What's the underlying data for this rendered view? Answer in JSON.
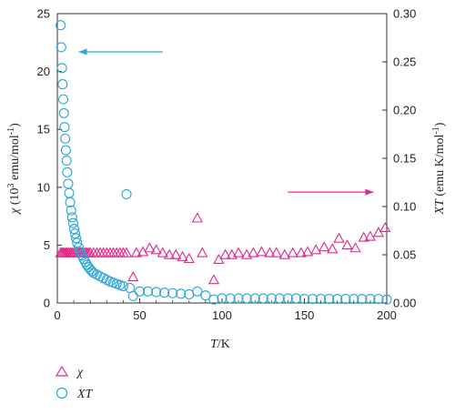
{
  "chart_data": {
    "type": "scatter",
    "x_label": {
      "base": "T",
      "unit": "/K"
    },
    "y_left_label": {
      "symbol": "χ",
      "prefix": " (10",
      "exp": "3",
      "suffix": " emu/mol",
      "unit_exp": "-1",
      "close": ")"
    },
    "y_right_label": {
      "symbol": "XT",
      "text": " (emu K/mol",
      "unit_exp": "-1",
      "close": ")"
    },
    "xlim": [
      0,
      200
    ],
    "ylim_left": [
      0,
      25
    ],
    "ylim_right": [
      0,
      0.3
    ],
    "x_ticks": [
      "0",
      "50",
      "100",
      "150",
      "200"
    ],
    "y_left_ticks": [
      "0",
      "5",
      "10",
      "15",
      "20",
      "25"
    ],
    "y_right_ticks": [
      "0.00",
      "0.05",
      "0.10",
      "0.15",
      "0.20",
      "0.25",
      "0.30"
    ],
    "colors": {
      "chi": "#e0288a",
      "chiT": "#2aa6d8",
      "arrow_left": "#2aa6d8",
      "arrow_right": "#e0288a"
    },
    "series": [
      {
        "name": "χ",
        "axis": "right",
        "marker": "triangle",
        "color": "#e0288a",
        "points": [
          [
            2,
            0.052
          ],
          [
            2.8,
            0.052
          ],
          [
            3.6,
            0.052
          ],
          [
            4.4,
            0.052
          ],
          [
            5.2,
            0.052
          ],
          [
            6,
            0.052
          ],
          [
            7,
            0.052
          ],
          [
            8,
            0.052
          ],
          [
            9,
            0.052
          ],
          [
            10,
            0.052
          ],
          [
            11,
            0.052
          ],
          [
            12,
            0.052
          ],
          [
            13,
            0.052
          ],
          [
            14,
            0.052
          ],
          [
            15,
            0.052
          ],
          [
            16,
            0.052
          ],
          [
            17,
            0.052
          ],
          [
            18,
            0.052
          ],
          [
            19,
            0.052
          ],
          [
            20,
            0.052
          ],
          [
            22,
            0.052
          ],
          [
            24,
            0.052
          ],
          [
            26,
            0.052
          ],
          [
            28,
            0.052
          ],
          [
            30,
            0.052
          ],
          [
            32,
            0.052
          ],
          [
            34,
            0.052
          ],
          [
            36,
            0.052
          ],
          [
            38,
            0.052
          ],
          [
            40,
            0.052
          ],
          [
            42,
            0.052
          ],
          [
            46,
            0.027
          ],
          [
            48,
            0.052
          ],
          [
            52,
            0.053
          ],
          [
            56,
            0.057
          ],
          [
            60,
            0.055
          ],
          [
            64,
            0.052
          ],
          [
            68,
            0.05
          ],
          [
            72,
            0.05
          ],
          [
            76,
            0.048
          ],
          [
            80,
            0.046
          ],
          [
            85,
            0.088
          ],
          [
            88,
            0.052
          ],
          [
            95,
            0.024
          ],
          [
            98,
            0.045
          ],
          [
            102,
            0.05
          ],
          [
            106,
            0.05
          ],
          [
            110,
            0.052
          ],
          [
            115,
            0.05
          ],
          [
            119,
            0.052
          ],
          [
            124,
            0.053
          ],
          [
            129,
            0.052
          ],
          [
            133,
            0.052
          ],
          [
            138,
            0.05
          ],
          [
            143,
            0.052
          ],
          [
            148,
            0.052
          ],
          [
            152,
            0.053
          ],
          [
            157,
            0.055
          ],
          [
            162,
            0.058
          ],
          [
            167,
            0.056
          ],
          [
            171,
            0.067
          ],
          [
            176,
            0.06
          ],
          [
            181,
            0.057
          ],
          [
            186,
            0.068
          ],
          [
            190,
            0.069
          ],
          [
            195,
            0.073
          ],
          [
            199,
            0.078
          ]
        ]
      },
      {
        "name": "XT",
        "axis": "left",
        "marker": "circle",
        "color": "#2aa6d8",
        "points": [
          [
            2,
            24.0
          ],
          [
            2.4,
            22.1
          ],
          [
            2.8,
            20.3
          ],
          [
            3.2,
            18.9
          ],
          [
            3.6,
            17.6
          ],
          [
            4,
            16.4
          ],
          [
            4.4,
            15.2
          ],
          [
            4.8,
            14.2
          ],
          [
            5.2,
            13.2
          ],
          [
            5.6,
            12.3
          ],
          [
            6,
            11.3
          ],
          [
            6.6,
            10.3
          ],
          [
            7.2,
            9.5
          ],
          [
            7.8,
            8.7
          ],
          [
            8.4,
            8.0
          ],
          [
            9,
            7.4
          ],
          [
            9.6,
            6.9
          ],
          [
            10.2,
            6.4
          ],
          [
            10.8,
            6.0
          ],
          [
            11.4,
            5.6
          ],
          [
            12,
            5.2
          ],
          [
            13,
            4.8
          ],
          [
            14,
            4.4
          ],
          [
            15,
            4.1
          ],
          [
            16,
            3.8
          ],
          [
            17,
            3.55
          ],
          [
            18,
            3.3
          ],
          [
            19,
            3.1
          ],
          [
            20,
            2.9
          ],
          [
            21,
            2.75
          ],
          [
            22,
            2.6
          ],
          [
            24,
            2.45
          ],
          [
            26,
            2.3
          ],
          [
            28,
            2.15
          ],
          [
            30,
            2.0
          ],
          [
            32,
            1.85
          ],
          [
            34,
            1.75
          ],
          [
            36,
            1.65
          ],
          [
            38,
            1.55
          ],
          [
            40,
            1.45
          ],
          [
            42,
            9.4
          ],
          [
            44,
            1.3
          ],
          [
            46,
            0.6
          ],
          [
            50,
            1.0
          ],
          [
            55,
            1.0
          ],
          [
            60,
            0.95
          ],
          [
            65,
            0.9
          ],
          [
            70,
            0.85
          ],
          [
            75,
            0.8
          ],
          [
            80,
            0.75
          ],
          [
            85,
            1.0
          ],
          [
            90,
            0.65
          ],
          [
            95,
            0.3
          ],
          [
            100,
            0.4
          ],
          [
            105,
            0.4
          ],
          [
            110,
            0.4
          ],
          [
            115,
            0.4
          ],
          [
            120,
            0.4
          ],
          [
            125,
            0.4
          ],
          [
            130,
            0.4
          ],
          [
            135,
            0.4
          ],
          [
            140,
            0.4
          ],
          [
            145,
            0.4
          ],
          [
            150,
            0.35
          ],
          [
            155,
            0.35
          ],
          [
            160,
            0.35
          ],
          [
            165,
            0.35
          ],
          [
            170,
            0.35
          ],
          [
            175,
            0.35
          ],
          [
            180,
            0.35
          ],
          [
            185,
            0.35
          ],
          [
            190,
            0.35
          ],
          [
            195,
            0.35
          ],
          [
            200,
            0.3
          ]
        ]
      }
    ],
    "annotations": [
      {
        "type": "arrow",
        "direction": "left",
        "from": [
          64,
          21.7
        ],
        "to": [
          13,
          21.7
        ],
        "color": "#2aa6d8"
      },
      {
        "type": "arrow",
        "direction": "right",
        "from": [
          140,
          0.115
        ],
        "to": [
          192,
          0.115
        ],
        "color": "#e0288a"
      }
    ],
    "legend": {
      "placement": "bottom-left",
      "items": [
        {
          "label": "χ",
          "marker": "triangle",
          "color": "#e0288a"
        },
        {
          "label": "XT",
          "marker": "circle",
          "color": "#2aa6d8"
        }
      ]
    }
  }
}
